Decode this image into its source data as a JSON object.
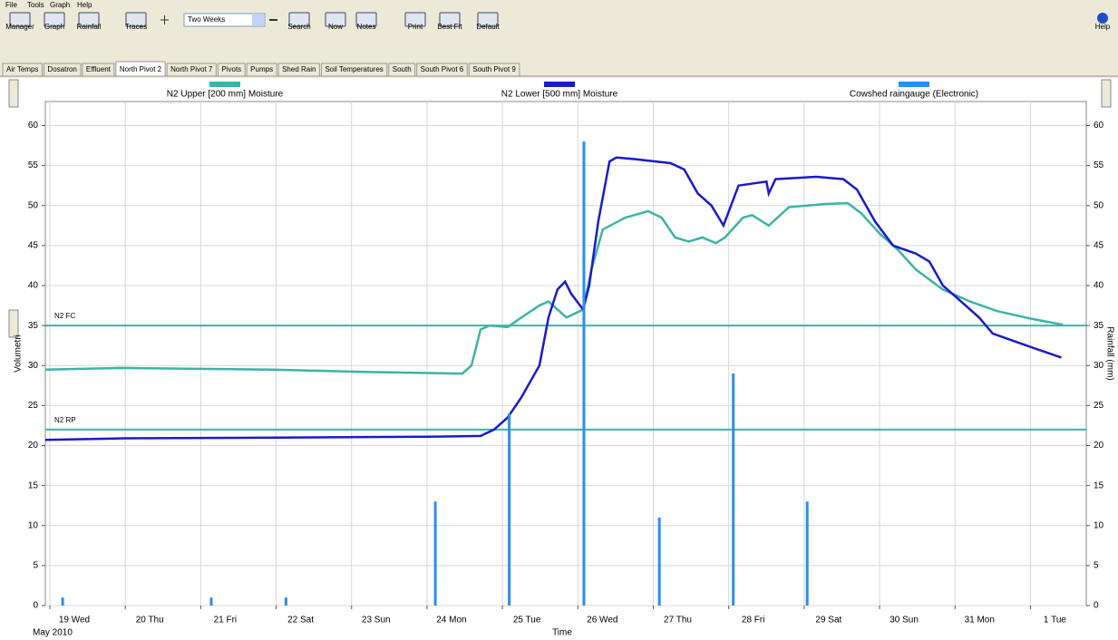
{
  "menu": [
    "File",
    "Tools",
    "Graph",
    "Help"
  ],
  "toolbar": {
    "buttons": [
      "Manager",
      "Graph",
      "Rainfall",
      "Traces",
      "Search",
      "Now",
      "Notes",
      "Print",
      "Best Fit",
      "Default"
    ],
    "period": "Two Weeks",
    "help": "Help"
  },
  "tabs": {
    "items": [
      "Air Temps",
      "Dosatron",
      "Effluent",
      "North Pivot 2",
      "North Pivot 7",
      "Pivots",
      "Pumps",
      "Shed Rain",
      "Soil Temperatures",
      "South",
      "South Pivot 6",
      "South Pivot 9"
    ],
    "selected": 3
  },
  "chart_data": {
    "type": "line",
    "ylabel": "Volumetri",
    "y2label": "Rainfall (mm)",
    "xlabel": "Time",
    "xsublabel": "May 2010",
    "xlim": [
      -0.06,
      13.74
    ],
    "xticks": [
      {
        "value": 0,
        "label": "19 Wed"
      },
      {
        "value": 1,
        "label": "20 Thu"
      },
      {
        "value": 2,
        "label": "21 Fri"
      },
      {
        "value": 3,
        "label": "22 Sat"
      },
      {
        "value": 4,
        "label": "23 Sun"
      },
      {
        "value": 5,
        "label": "24 Mon"
      },
      {
        "value": 6,
        "label": "25 Tue"
      },
      {
        "value": 7,
        "label": "26 Wed"
      },
      {
        "value": 8,
        "label": "27 Thu"
      },
      {
        "value": 9,
        "label": "28 Fri"
      },
      {
        "value": 10,
        "label": "29 Sat"
      },
      {
        "value": 11,
        "label": "30 Sun"
      },
      {
        "value": 12,
        "label": "31 Mon"
      },
      {
        "value": 13,
        "label": "1 Tue"
      }
    ],
    "ylim": [
      0,
      63
    ],
    "yticks": [
      0,
      5,
      10,
      15,
      20,
      25,
      30,
      35,
      40,
      45,
      50,
      55,
      60
    ],
    "y2lim": [
      0,
      63
    ],
    "y2ticks": [
      0,
      5,
      10,
      15,
      20,
      25,
      30,
      35,
      40,
      45,
      50,
      55,
      60
    ],
    "grid": true,
    "reference_lines": [
      {
        "label": "N2 FC",
        "value": 35,
        "color": "#3cb4a4"
      },
      {
        "label": "N2 RP",
        "value": 22,
        "color": "#3cb4a4"
      }
    ],
    "series": [
      {
        "name": "N2 Upper  [200 mm] Moisture",
        "color": "#3cb4a4",
        "kind": "line",
        "x": [
          -0.06,
          0.9,
          2.95,
          4.16,
          5.47,
          5.59,
          5.71,
          5.83,
          6.07,
          6.25,
          6.49,
          6.61,
          6.85,
          7.07,
          7.18,
          7.33,
          7.63,
          7.93,
          8.11,
          8.29,
          8.47,
          8.65,
          8.83,
          8.95,
          9.19,
          9.31,
          9.53,
          9.8,
          10.28,
          10.58,
          10.76,
          11.0,
          11.24,
          11.48,
          11.84,
          12.2,
          12.56,
          13.04,
          13.43
        ],
        "values": [
          29.5,
          29.7,
          29.5,
          29.2,
          29.0,
          30,
          34.5,
          35,
          34.8,
          36,
          37.5,
          38,
          36,
          37,
          42,
          47,
          48.5,
          49.3,
          48.5,
          46,
          45.5,
          46,
          45.3,
          46,
          48.5,
          48.8,
          47.5,
          49.8,
          50.2,
          50.3,
          49,
          46.5,
          44.5,
          42,
          39.5,
          38,
          36.8,
          35.8,
          35.1
        ]
      },
      {
        "name": "N2 Lower  [500 mm] Moisture",
        "color": "#1a1acc",
        "kind": "line",
        "x": [
          -0.06,
          1.0,
          3.0,
          5.0,
          5.71,
          5.89,
          6.07,
          6.25,
          6.49,
          6.61,
          6.73,
          6.83,
          6.91,
          7.07,
          7.15,
          7.27,
          7.42,
          7.51,
          7.75,
          8.23,
          8.41,
          8.59,
          8.77,
          8.93,
          9.13,
          9.5,
          9.53,
          9.62,
          10.16,
          10.52,
          10.7,
          10.94,
          11.18,
          11.48,
          11.66,
          11.84,
          12.08,
          12.32,
          12.5,
          12.8,
          13.1,
          13.41
        ],
        "values": [
          20.7,
          20.9,
          21,
          21.1,
          21.2,
          22,
          23.5,
          26,
          30,
          36,
          39.5,
          40.5,
          39,
          37,
          40,
          48,
          55.5,
          56,
          55.8,
          55.3,
          54.5,
          51.5,
          50,
          47.5,
          52.5,
          53,
          51.5,
          53.3,
          53.6,
          53.3,
          52,
          48,
          45,
          44,
          43,
          40,
          38,
          36,
          34,
          33,
          32,
          31
        ]
      },
      {
        "name": "Cowshed raingauge (Electronic)",
        "color": "#2a8ef0",
        "kind": "bar",
        "axis": "y2",
        "x": [
          0.17,
          2.14,
          3.13,
          5.11,
          6.09,
          7.08,
          8.08,
          9.06,
          10.04
        ],
        "values": [
          1,
          1,
          1,
          13,
          24,
          58,
          11,
          29,
          13
        ]
      }
    ]
  }
}
